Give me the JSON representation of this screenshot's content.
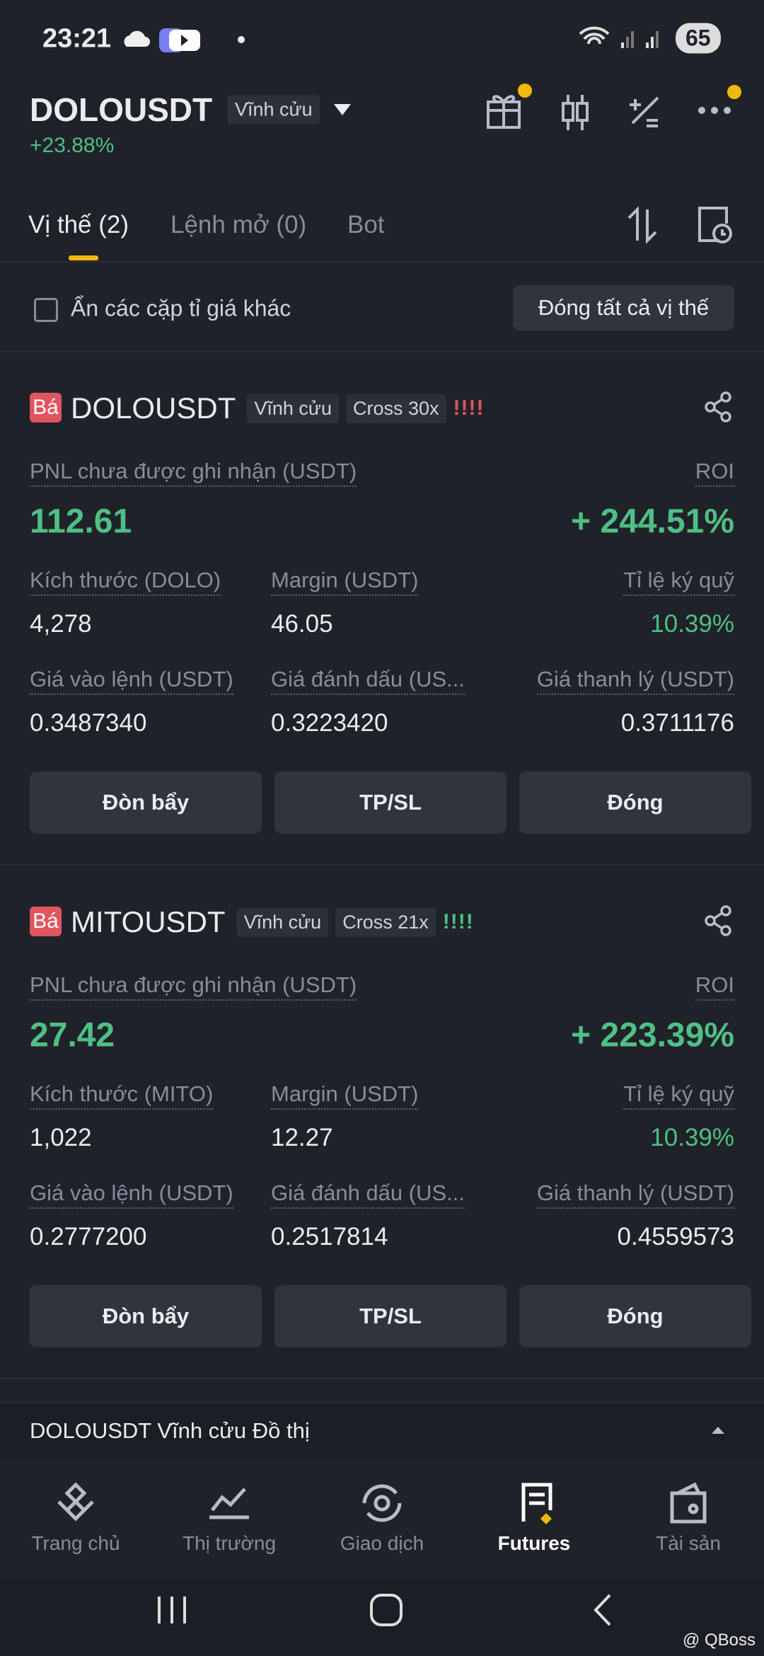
{
  "status_bar": {
    "time": "23:21",
    "battery": "65"
  },
  "header": {
    "symbol": "DOLOUSDT",
    "tag": "Vĩnh cửu",
    "change": "+23.88%"
  },
  "tabs": [
    "Vị thế (2)",
    "Lệnh mở (0)",
    "Bot"
  ],
  "filter": {
    "checkbox_label": "Ẩn các cặp tỉ giá khác",
    "close_all": "Đóng tất cả vị thế"
  },
  "positions": [
    {
      "side": "Bá",
      "symbol": "DOLOUSDT",
      "tag": "Vĩnh cửu",
      "leverage": "Cross 30x",
      "risk": "!!!!",
      "pnl_label": "PNL chưa được ghi nhận (USDT)",
      "pnl": "112.61",
      "roi_label": "ROI",
      "roi": "+ 244.51%",
      "fields": [
        {
          "label": "Kích thước (DOLO)",
          "value": "4,278"
        },
        {
          "label": "Margin (USDT)",
          "value": "46.05"
        },
        {
          "label": "Tỉ lệ ký quỹ",
          "value": "10.39%"
        },
        {
          "label": "Giá vào lệnh (USDT)",
          "value": "0.3487340"
        },
        {
          "label": "Giá đánh dấu (US...",
          "value": "0.3223420"
        },
        {
          "label": "Giá thanh lý (USDT)",
          "value": "0.3711176"
        }
      ],
      "buttons": [
        "Đòn bẩy",
        "TP/SL",
        "Đóng"
      ]
    },
    {
      "side": "Bá",
      "symbol": "MITOUSDT",
      "tag": "Vĩnh cửu",
      "leverage": "Cross 21x",
      "risk": "!!!!",
      "pnl_label": "PNL chưa được ghi nhận (USDT)",
      "pnl": "27.42",
      "roi_label": "ROI",
      "roi": "+ 223.39%",
      "fields": [
        {
          "label": "Kích thước (MITO)",
          "value": "1,022"
        },
        {
          "label": "Margin (USDT)",
          "value": "12.27"
        },
        {
          "label": "Tỉ lệ ký quỹ",
          "value": "10.39%"
        },
        {
          "label": "Giá vào lệnh (USDT)",
          "value": "0.2777200"
        },
        {
          "label": "Giá đánh dấu (US...",
          "value": "0.2517814"
        },
        {
          "label": "Giá thanh lý (USDT)",
          "value": "0.4559573"
        }
      ],
      "buttons": [
        "Đòn bẩy",
        "TP/SL",
        "Đóng"
      ]
    }
  ],
  "chart_bar": "DOLOUSDT Vĩnh cửu Đồ thị",
  "nav": [
    "Trang chủ",
    "Thị trường",
    "Giao dịch",
    "Futures",
    "Tài sản"
  ],
  "watermark": "@ QBoss"
}
